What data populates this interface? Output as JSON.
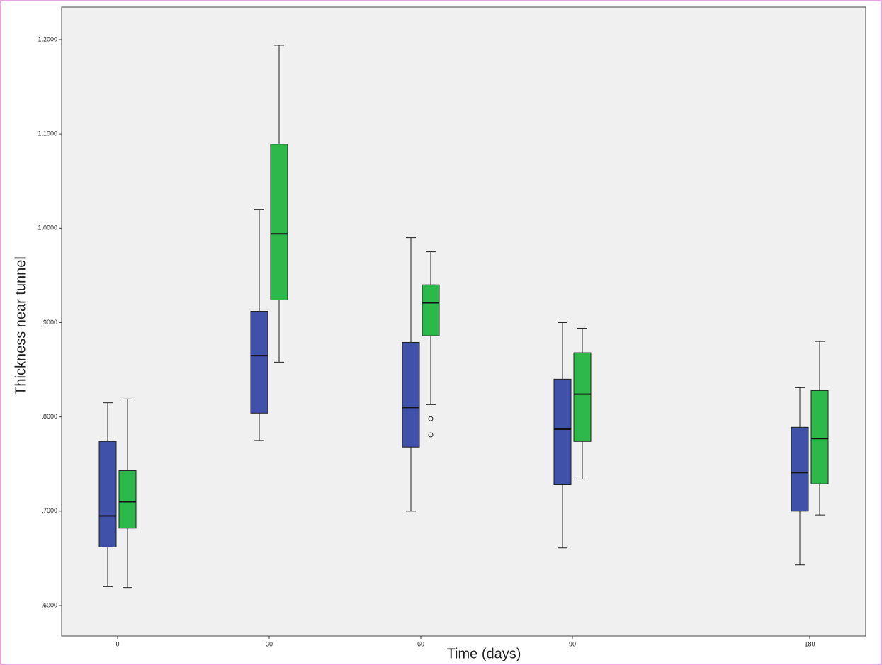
{
  "chart_data": {
    "type": "box",
    "x_label": "Time (days)",
    "y_label": "Thickness near tunnel",
    "categories": [
      "0",
      "30",
      "60",
      "90",
      "180"
    ],
    "ylim": [
      0.5677,
      1.2345
    ],
    "yticks": [
      {
        "value": 0.6,
        "label": ".6000"
      },
      {
        "value": 0.7,
        "label": ".7000"
      },
      {
        "value": 0.8,
        "label": ".8000"
      },
      {
        "value": 0.9,
        "label": ".9000"
      },
      {
        "value": 1.0,
        "label": "1.0000"
      },
      {
        "value": 1.1,
        "label": "1.1000"
      },
      {
        "value": 1.2,
        "label": "1.2000"
      }
    ],
    "series": [
      {
        "color": "#3f51a8",
        "low": [
          0.62,
          0.775,
          0.7,
          0.661,
          0.643
        ],
        "q1": [
          0.662,
          0.804,
          0.768,
          0.728,
          0.7
        ],
        "median": [
          0.695,
          0.865,
          0.81,
          0.787,
          0.741
        ],
        "q3": [
          0.774,
          0.912,
          0.879,
          0.84,
          0.789
        ],
        "high": [
          0.815,
          1.02,
          0.99,
          0.9,
          0.831
        ],
        "outliers": [
          [],
          [],
          [],
          [],
          []
        ]
      },
      {
        "color": "#2db84a",
        "low": [
          0.619,
          0.858,
          0.813,
          0.734,
          0.696
        ],
        "q1": [
          0.682,
          0.924,
          0.886,
          0.774,
          0.729
        ],
        "median": [
          0.71,
          0.994,
          0.921,
          0.824,
          0.777
        ],
        "q3": [
          0.743,
          1.089,
          0.94,
          0.868,
          0.828
        ],
        "high": [
          0.819,
          1.194,
          0.975,
          0.894,
          0.88
        ],
        "outliers": [
          [],
          [],
          [
            0.798,
            0.781
          ],
          [],
          []
        ]
      }
    ]
  }
}
